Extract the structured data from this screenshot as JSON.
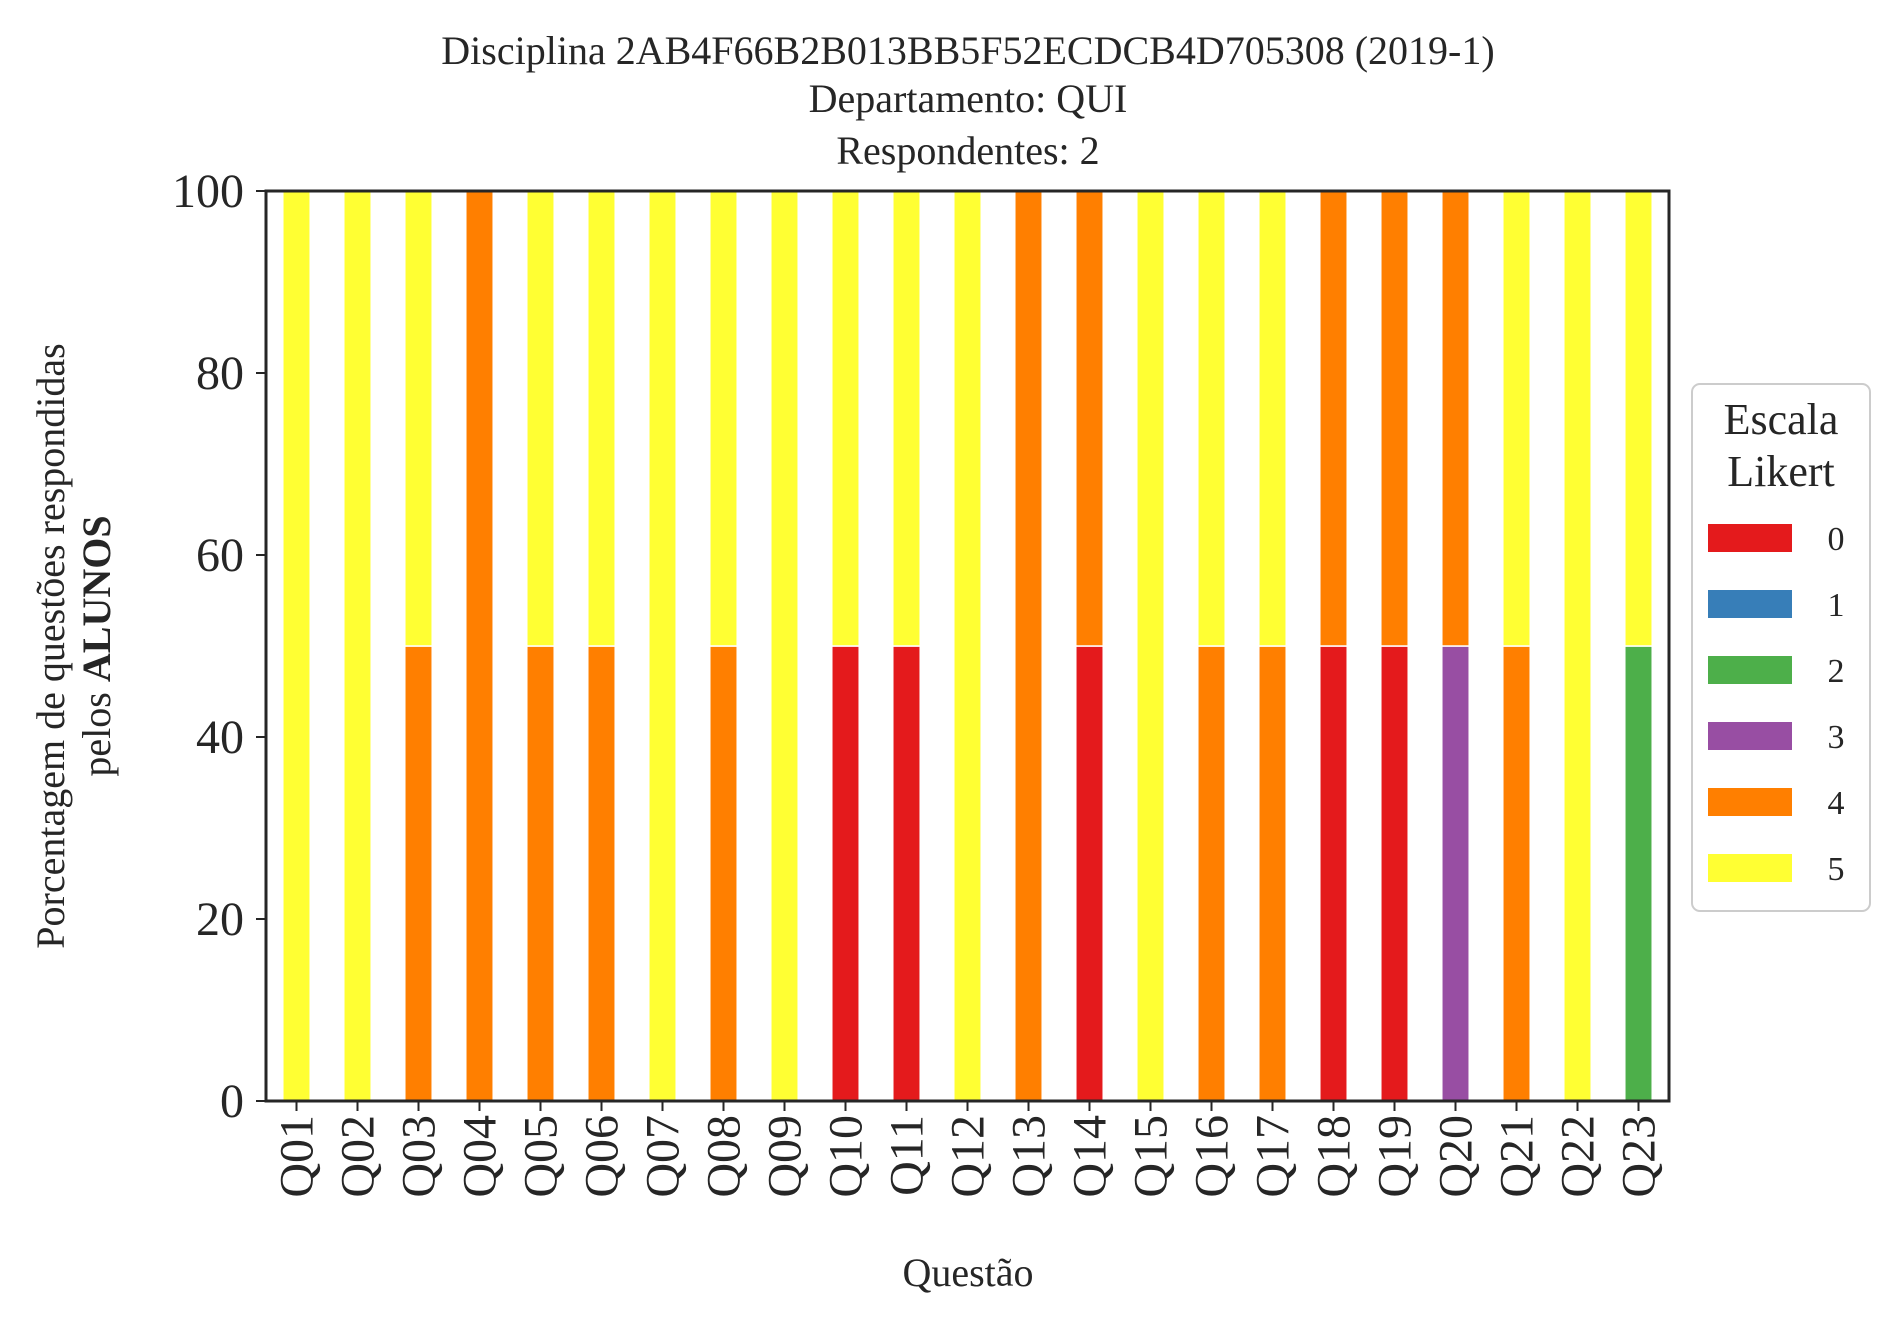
{
  "chart_data": {
    "type": "bar",
    "stacked": true,
    "title": [
      "Disciplina 2AB4F66B2B013BB5F52ECDCB4D705308 (2019-1)",
      "Departamento: QUI",
      "Respondentes: 2"
    ],
    "xlabel": "Questão",
    "ylabel": {
      "line1": "Porcentagem de questões respondidas",
      "line2_prefix": "pelos ",
      "line2_bold": "ALUNOS"
    },
    "ylim": [
      0,
      100
    ],
    "yticks": [
      0,
      20,
      40,
      60,
      80,
      100
    ],
    "grid": false,
    "legend": {
      "title": [
        "Escala",
        "Likert"
      ],
      "placement": "center-right-outside",
      "entries": [
        "0",
        "1",
        "2",
        "3",
        "4",
        "5"
      ]
    },
    "categories": [
      "Q01",
      "Q02",
      "Q03",
      "Q04",
      "Q05",
      "Q06",
      "Q07",
      "Q08",
      "Q09",
      "Q10",
      "Q11",
      "Q12",
      "Q13",
      "Q14",
      "Q15",
      "Q16",
      "Q17",
      "Q18",
      "Q19",
      "Q20",
      "Q21",
      "Q22",
      "Q23"
    ],
    "series": [
      {
        "name": "0",
        "color": "#e41a1c",
        "values": [
          0,
          0,
          0,
          0,
          0,
          0,
          0,
          0,
          0,
          50,
          50,
          0,
          0,
          50,
          0,
          0,
          0,
          50,
          50,
          0,
          0,
          0,
          0
        ]
      },
      {
        "name": "1",
        "color": "#377eb8",
        "values": [
          0,
          0,
          0,
          0,
          0,
          0,
          0,
          0,
          0,
          0,
          0,
          0,
          0,
          0,
          0,
          0,
          0,
          0,
          0,
          0,
          0,
          0,
          0
        ]
      },
      {
        "name": "2",
        "color": "#4daf4a",
        "values": [
          0,
          0,
          0,
          0,
          0,
          0,
          0,
          0,
          0,
          0,
          0,
          0,
          0,
          0,
          0,
          0,
          0,
          0,
          0,
          0,
          0,
          0,
          50
        ]
      },
      {
        "name": "3",
        "color": "#984ea3",
        "values": [
          0,
          0,
          0,
          0,
          0,
          0,
          0,
          0,
          0,
          0,
          0,
          0,
          0,
          0,
          0,
          0,
          0,
          0,
          0,
          50,
          0,
          0,
          0
        ]
      },
      {
        "name": "4",
        "color": "#ff7f00",
        "values": [
          0,
          0,
          50,
          100,
          50,
          50,
          0,
          50,
          0,
          0,
          0,
          0,
          100,
          50,
          0,
          50,
          50,
          50,
          50,
          50,
          50,
          0,
          0
        ]
      },
      {
        "name": "5",
        "color": "#ffff33",
        "values": [
          100,
          100,
          50,
          0,
          50,
          50,
          100,
          50,
          100,
          50,
          50,
          100,
          0,
          0,
          100,
          50,
          50,
          0,
          0,
          0,
          50,
          100,
          50
        ]
      }
    ]
  }
}
